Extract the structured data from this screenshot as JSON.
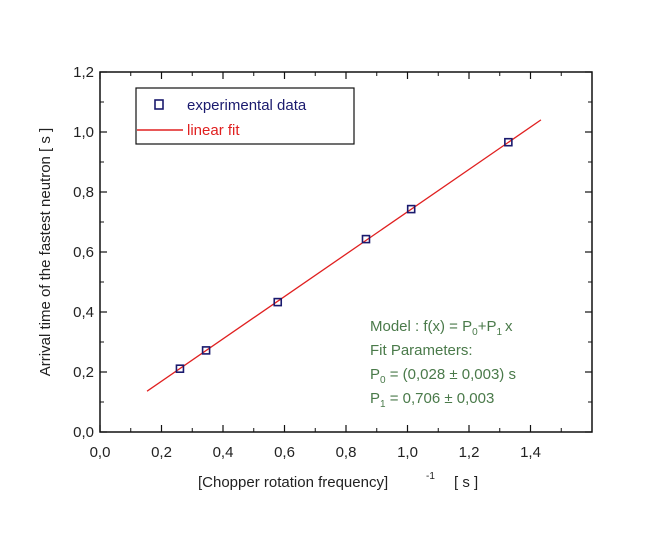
{
  "chart_data": {
    "type": "scatter",
    "xlabel": "[Chopper rotation frequency]",
    "xlabel_sup": "-1",
    "xlabel_unit": "[ s ]",
    "ylabel": "Arrival time of the fastest neutron [ s ]",
    "xlim": [
      0.0,
      1.6
    ],
    "ylim": [
      0.0,
      1.2
    ],
    "x_ticks": [
      "0,0",
      "0,2",
      "0,4",
      "0,6",
      "0,8",
      "1,0",
      "1,2",
      "1,4"
    ],
    "x_tick_values": [
      0.0,
      0.2,
      0.4,
      0.6,
      0.8,
      1.0,
      1.2,
      1.4
    ],
    "y_ticks": [
      "0,0",
      "0,2",
      "0,4",
      "0,6",
      "0,8",
      "1,0",
      "1,2"
    ],
    "y_tick_values": [
      0.0,
      0.2,
      0.4,
      0.6,
      0.8,
      1.0,
      1.2
    ],
    "grid": false,
    "legend_position": "top-left",
    "series": [
      {
        "name": "experimental data",
        "kind": "markers",
        "marker": "open-square",
        "color": "#1a1a6e",
        "x": [
          0.26,
          0.345,
          0.578,
          0.865,
          1.012,
          1.328
        ],
        "y": [
          0.211,
          0.272,
          0.433,
          0.643,
          0.743,
          0.966
        ]
      },
      {
        "name": "linear fit",
        "kind": "line",
        "color": "#e02020",
        "intercept": 0.028,
        "slope": 0.706,
        "x_range": [
          0.153,
          1.434
        ]
      }
    ],
    "annotation": {
      "model_prefix": "Model : f(x) = P",
      "model_sub0": "0",
      "model_plus": "+P",
      "model_sub1": "1",
      "model_suffix": "x",
      "fit_title": "Fit Parameters:",
      "p0_label": "P",
      "p0_sub": "0",
      "p0_value": " = (0,028  ± 0,003) s",
      "p1_label": "P",
      "p1_sub": "1",
      "p1_value": " =  0,706  ± 0,003",
      "color": "#4a7a4a"
    }
  }
}
